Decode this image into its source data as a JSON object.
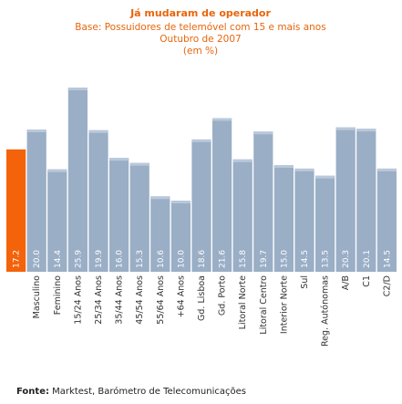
{
  "chart_data": {
    "type": "bar",
    "title": "Já mudaram de operador",
    "subtitle_lines": [
      "Base: Possuidores de telemóvel com 15 e mais anos",
      "Outubro de 2007",
      "(em %)"
    ],
    "categories": [
      "",
      "Masculino",
      "Feminino",
      "15/24 Anos",
      "25/34 Anos",
      "35/44 Anos",
      "45/54 Anos",
      "55/64 Anos",
      "+64 Anos",
      "Gd. Lisboa",
      "Gd. Porto",
      "Litoral Norte",
      "Litoral Centro",
      "Interior Norte",
      "Sul",
      "Reg. Autónomas",
      "A/B",
      "C1",
      "C2/D"
    ],
    "values": [
      17.2,
      20.0,
      14.4,
      25.9,
      19.9,
      16.0,
      15.3,
      10.6,
      10.0,
      18.6,
      21.6,
      15.8,
      19.7,
      15.0,
      14.5,
      13.5,
      20.3,
      20.1,
      14.5
    ],
    "value_labels": [
      "17.2",
      "20.0",
      "14.4",
      "25.9",
      "19.9",
      "16.0",
      "15.3",
      "10.6",
      "10.0",
      "18.6",
      "21.6",
      "15.8",
      "19.7",
      "15.0",
      "14.5",
      "13.5",
      "20.3",
      "20.1",
      "14.5"
    ],
    "highlight_index": 0,
    "colors": {
      "highlight": "#f4620a",
      "bar": "#9aaec6",
      "bar_top": "#b9c8da",
      "title": "#e8650c"
    },
    "ylim": [
      0,
      28
    ],
    "grid": false,
    "legend": "none"
  },
  "source": {
    "label": "Fonte:",
    "text": " Marktest, Barómetro de Telecomunicações"
  }
}
